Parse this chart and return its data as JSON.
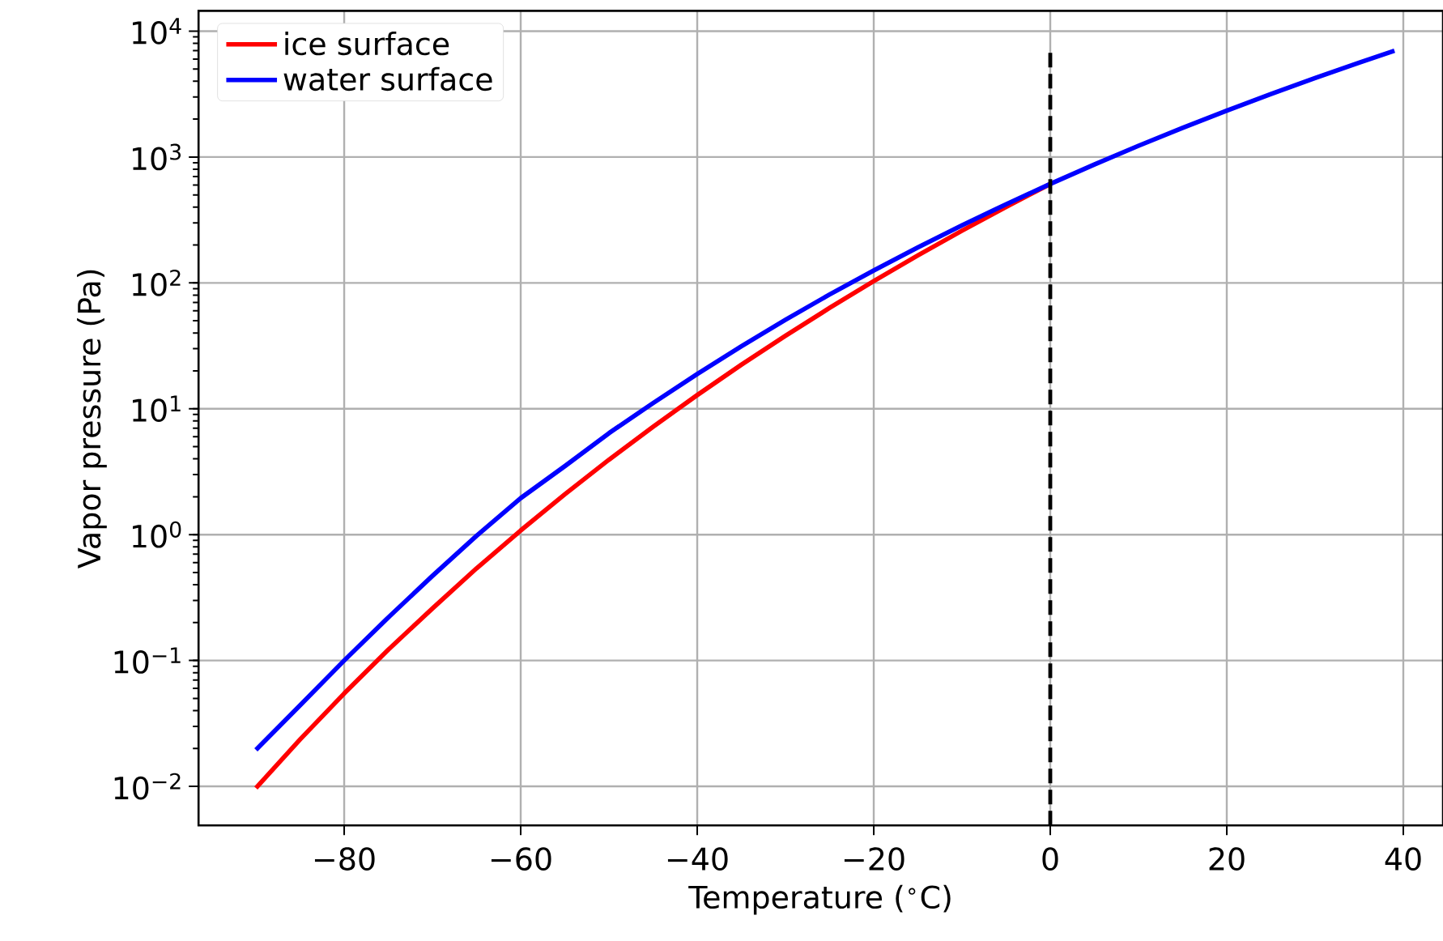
{
  "chart_data": {
    "type": "line",
    "xlabel": "Temperature ($^{∘}$C)",
    "ylabel": "Vapor pressure (Pa)",
    "log": "y",
    "grid": true,
    "legend": "top left",
    "xlim": [
      -96.5,
      44.5
    ],
    "ylim": [
      0.0049,
      14500
    ],
    "xticks": [
      {
        "value": -80,
        "label": "−80"
      },
      {
        "value": -60,
        "label": "−60"
      },
      {
        "value": -40,
        "label": "−40"
      },
      {
        "value": -20,
        "label": "−20"
      },
      0,
      20,
      40
    ],
    "yticks": [
      {
        "value": 0.01,
        "label": "10$^{−2}$"
      },
      {
        "value": 0.1,
        "label": "10$^{−1}$"
      },
      {
        "value": 1,
        "label": "10$^{0}$"
      },
      {
        "value": 10,
        "label": "10$^{1}$"
      },
      {
        "value": 100,
        "label": "10$^{2}$"
      },
      {
        "value": 1000,
        "label": "10$^{3}$"
      },
      {
        "value": 10000,
        "label": "10$^{4}$"
      }
    ],
    "series": [
      {
        "name": "ice surface",
        "color": "#ff0000",
        "x": [
          -90,
          -85,
          -80,
          -75,
          -70,
          -65,
          -60,
          -55,
          -50,
          -45,
          -40,
          -35,
          -30,
          -25,
          -20,
          -15,
          -10,
          -5,
          0
        ],
        "values": [
          0.0097,
          0.0236,
          0.0547,
          0.122,
          0.259,
          0.54,
          1.08,
          2.09,
          3.94,
          7.2,
          12.84,
          22.4,
          38.0,
          63.3,
          103.3,
          165.5,
          259.9,
          401.7,
          611
        ]
      },
      {
        "name": "water surface",
        "color": "#0000ff",
        "x": [
          -90,
          -85,
          -80,
          -75,
          -70,
          -65,
          -60,
          -55,
          -50,
          -45,
          -40,
          -35,
          -30,
          -25,
          -20,
          -15,
          -10,
          -5,
          0,
          5,
          10,
          15,
          20,
          25,
          30,
          35,
          39
        ],
        "values": [
          0.0195,
          0.044,
          0.1,
          0.22,
          0.47,
          0.98,
          1.95,
          3.5,
          6.4,
          11.1,
          18.9,
          31.3,
          50.9,
          80.9,
          125.6,
          191.4,
          286.5,
          421.9,
          611.2,
          872.5,
          1228,
          1705,
          2339,
          3169,
          4246,
          5627,
          6990
        ]
      },
      {
        "color": "#000000",
        "line_style": "dashed",
        "x": [
          0,
          0
        ],
        "values": [
          0.0049,
          7200
        ]
      }
    ]
  }
}
